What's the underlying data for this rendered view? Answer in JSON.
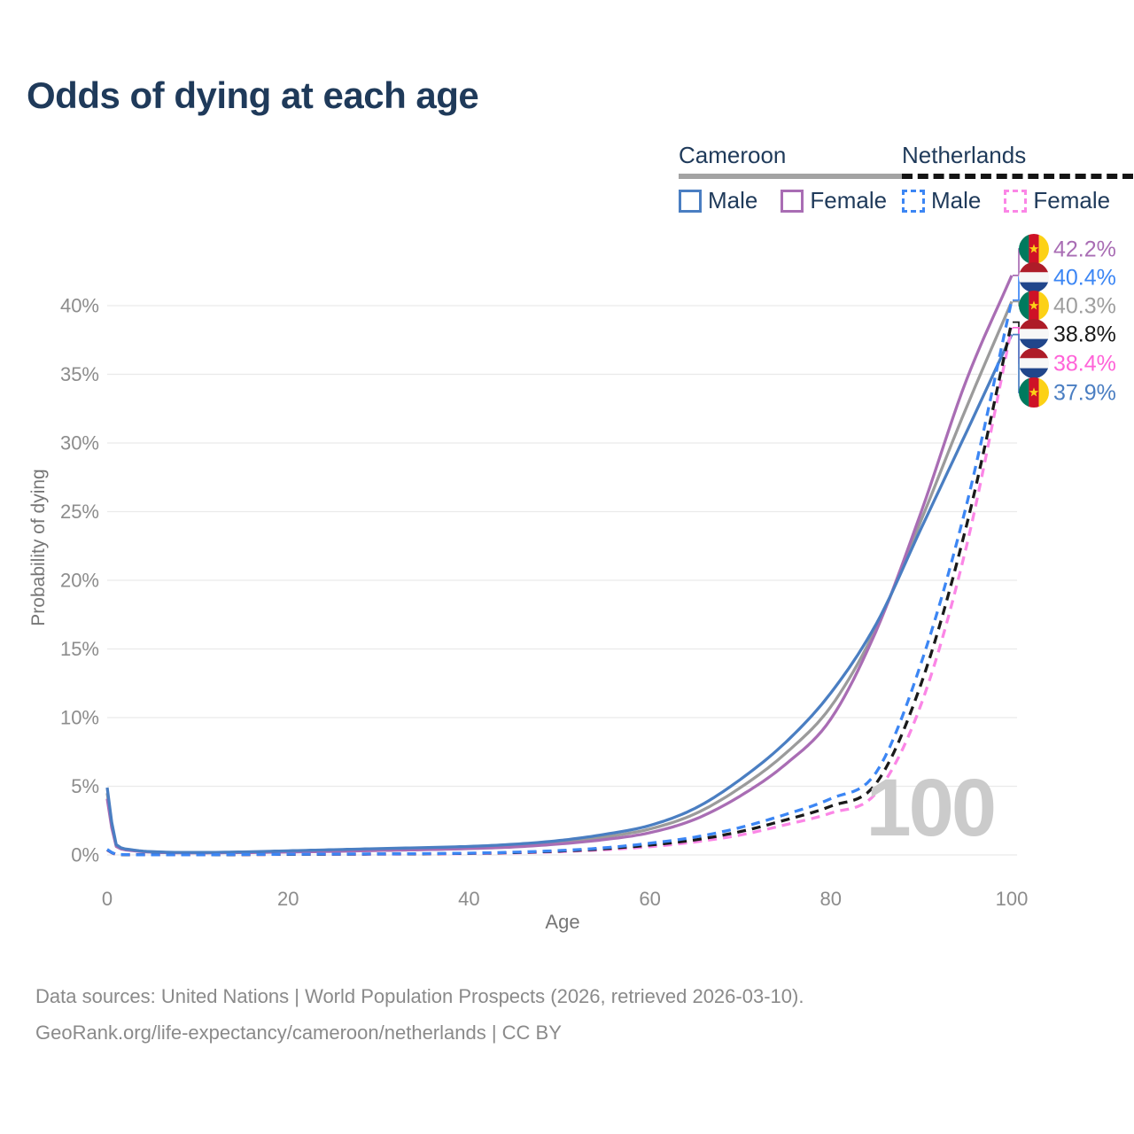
{
  "title": "Odds of dying at each age",
  "watermark_age": "100",
  "legend": {
    "groups": [
      {
        "country": "Cameroon",
        "line_style": "solid",
        "underline_color": "#a3a3a3",
        "items": [
          {
            "label": "Male",
            "color": "#4a7ec2"
          },
          {
            "label": "Female",
            "color": "#a96db4"
          }
        ]
      },
      {
        "country": "Netherlands",
        "line_style": "dashed",
        "underline_color": "#141414",
        "items": [
          {
            "label": "Male",
            "color": "#3c86f4"
          },
          {
            "label": "Female",
            "color": "#fb86e6"
          }
        ]
      }
    ]
  },
  "axes": {
    "xlabel": "Age",
    "ylabel": "Probability of dying"
  },
  "footer": {
    "line1": "Data sources: United Nations | World Population Prospects (2026, retrieved 2026-03-10).",
    "line2": "GeoRank.org/life-expectancy/cameroon/netherlands | CC BY"
  },
  "chart_data": {
    "type": "line",
    "title": "Odds of dying at each age",
    "xlabel": "Age",
    "ylabel": "Probability of dying",
    "xlim": [
      0,
      100
    ],
    "ylim_percent": [
      0,
      43.5
    ],
    "x_ticks": [
      0,
      20,
      40,
      60,
      80,
      100
    ],
    "y_ticks_percent": [
      0,
      5,
      10,
      15,
      20,
      25,
      30,
      35,
      40
    ],
    "grid": "horizontal",
    "legend_position": "top-right",
    "series": [
      {
        "name": "Cameroon Both sexes",
        "country": "Cameroon",
        "sex": "both",
        "color": "#9b9b9b",
        "dashed": false,
        "end_value_percent": 40.3,
        "points": [
          [
            0,
            4.5
          ],
          [
            1,
            0.69
          ],
          [
            3,
            0.33
          ],
          [
            5,
            0.22
          ],
          [
            10,
            0.17
          ],
          [
            15,
            0.2
          ],
          [
            20,
            0.26
          ],
          [
            25,
            0.32
          ],
          [
            30,
            0.39
          ],
          [
            35,
            0.46
          ],
          [
            40,
            0.54
          ],
          [
            45,
            0.68
          ],
          [
            50,
            0.93
          ],
          [
            55,
            1.31
          ],
          [
            60,
            1.89
          ],
          [
            65,
            3.0
          ],
          [
            70,
            4.9
          ],
          [
            75,
            7.4
          ],
          [
            80,
            10.8
          ],
          [
            85,
            16.5
          ],
          [
            90,
            24.4
          ],
          [
            95,
            32.6
          ],
          [
            100,
            40.3
          ]
        ]
      },
      {
        "name": "Cameroon Female",
        "country": "Cameroon",
        "sex": "female",
        "color": "#a96db4",
        "dashed": false,
        "end_value_percent": 42.2,
        "points": [
          [
            0,
            4.1
          ],
          [
            1,
            0.62
          ],
          [
            3,
            0.3
          ],
          [
            5,
            0.2
          ],
          [
            10,
            0.15
          ],
          [
            15,
            0.17
          ],
          [
            20,
            0.21
          ],
          [
            25,
            0.26
          ],
          [
            30,
            0.32
          ],
          [
            35,
            0.38
          ],
          [
            40,
            0.46
          ],
          [
            45,
            0.58
          ],
          [
            50,
            0.8
          ],
          [
            55,
            1.12
          ],
          [
            60,
            1.62
          ],
          [
            65,
            2.6
          ],
          [
            70,
            4.3
          ],
          [
            75,
            6.6
          ],
          [
            80,
            9.9
          ],
          [
            85,
            16.3
          ],
          [
            90,
            25.0
          ],
          [
            95,
            34.6
          ],
          [
            100,
            42.2
          ]
        ]
      },
      {
        "name": "Cameroon Male",
        "country": "Cameroon",
        "sex": "male",
        "color": "#4a7ec2",
        "dashed": false,
        "end_value_percent": 37.9,
        "points": [
          [
            0,
            4.9
          ],
          [
            1,
            0.75
          ],
          [
            3,
            0.35
          ],
          [
            5,
            0.24
          ],
          [
            10,
            0.18
          ],
          [
            15,
            0.22
          ],
          [
            20,
            0.3
          ],
          [
            25,
            0.38
          ],
          [
            30,
            0.46
          ],
          [
            35,
            0.53
          ],
          [
            40,
            0.62
          ],
          [
            45,
            0.78
          ],
          [
            50,
            1.05
          ],
          [
            55,
            1.5
          ],
          [
            60,
            2.15
          ],
          [
            65,
            3.4
          ],
          [
            70,
            5.5
          ],
          [
            75,
            8.2
          ],
          [
            80,
            11.8
          ],
          [
            85,
            16.8
          ],
          [
            90,
            23.8
          ],
          [
            95,
            30.8
          ],
          [
            100,
            37.9
          ]
        ]
      },
      {
        "name": "Netherlands Female",
        "country": "Netherlands",
        "sex": "female",
        "color": "#fb86e6",
        "dashed": true,
        "end_value_percent": 38.4,
        "points": [
          [
            0,
            0.35
          ],
          [
            1,
            0.03
          ],
          [
            5,
            0.009
          ],
          [
            10,
            0.009
          ],
          [
            15,
            0.02
          ],
          [
            20,
            0.035
          ],
          [
            25,
            0.045
          ],
          [
            30,
            0.055
          ],
          [
            35,
            0.07
          ],
          [
            40,
            0.1
          ],
          [
            45,
            0.15
          ],
          [
            50,
            0.24
          ],
          [
            55,
            0.38
          ],
          [
            60,
            0.6
          ],
          [
            65,
            0.95
          ],
          [
            70,
            1.45
          ],
          [
            75,
            2.2
          ],
          [
            80,
            3.05
          ],
          [
            85,
            4.5
          ],
          [
            90,
            11.0
          ],
          [
            95,
            22.5
          ],
          [
            100,
            38.4
          ]
        ]
      },
      {
        "name": "Netherlands Both sexes",
        "country": "Netherlands",
        "sex": "both",
        "color": "#1a1a1a",
        "dashed": true,
        "end_value_percent": 38.8,
        "points": [
          [
            0,
            0.38
          ],
          [
            1,
            0.035
          ],
          [
            5,
            0.01
          ],
          [
            10,
            0.01
          ],
          [
            15,
            0.025
          ],
          [
            20,
            0.045
          ],
          [
            25,
            0.055
          ],
          [
            30,
            0.065
          ],
          [
            35,
            0.085
          ],
          [
            40,
            0.115
          ],
          [
            45,
            0.175
          ],
          [
            50,
            0.28
          ],
          [
            55,
            0.45
          ],
          [
            60,
            0.72
          ],
          [
            65,
            1.1
          ],
          [
            70,
            1.7
          ],
          [
            75,
            2.55
          ],
          [
            80,
            3.55
          ],
          [
            85,
            5.2
          ],
          [
            90,
            12.5
          ],
          [
            95,
            24.0
          ],
          [
            100,
            38.8
          ]
        ]
      },
      {
        "name": "Netherlands Male",
        "country": "Netherlands",
        "sex": "male",
        "color": "#3c86f4",
        "dashed": true,
        "end_value_percent": 40.4,
        "points": [
          [
            0,
            0.4
          ],
          [
            1,
            0.04
          ],
          [
            5,
            0.012
          ],
          [
            10,
            0.012
          ],
          [
            15,
            0.03
          ],
          [
            20,
            0.055
          ],
          [
            25,
            0.065
          ],
          [
            30,
            0.075
          ],
          [
            35,
            0.095
          ],
          [
            40,
            0.13
          ],
          [
            45,
            0.2
          ],
          [
            50,
            0.32
          ],
          [
            55,
            0.52
          ],
          [
            60,
            0.85
          ],
          [
            65,
            1.3
          ],
          [
            70,
            2.0
          ],
          [
            75,
            2.95
          ],
          [
            80,
            4.1
          ],
          [
            85,
            6.0
          ],
          [
            90,
            14.0
          ],
          [
            95,
            25.5
          ],
          [
            100,
            40.4
          ]
        ]
      }
    ],
    "end_labels": [
      {
        "text": "42.2%",
        "series": "Cameroon Female",
        "flag": "cameroon",
        "color": "#a96db4",
        "value": 42.2
      },
      {
        "text": "40.4%",
        "series": "Netherlands Male",
        "flag": "netherlands",
        "color": "#3c86f4",
        "value": 40.4
      },
      {
        "text": "40.3%",
        "series": "Cameroon Both sexes",
        "flag": "cameroon",
        "color": "#9e9e9e",
        "value": 40.3
      },
      {
        "text": "38.8%",
        "series": "Netherlands Both sexes",
        "flag": "netherlands",
        "color": "#1a1a1a",
        "value": 38.8
      },
      {
        "text": "38.4%",
        "series": "Netherlands Female",
        "flag": "netherlands",
        "color": "#ff63d8",
        "value": 38.4
      },
      {
        "text": "37.9%",
        "series": "Cameroon Male",
        "flag": "cameroon",
        "color": "#4a7ec2",
        "value": 37.9
      }
    ],
    "flag_colors": {
      "cameroon": [
        "#007a5e",
        "#ce1126",
        "#fcd116"
      ],
      "netherlands": [
        "#ae1c28",
        "#f7f7f7",
        "#21468b"
      ]
    }
  }
}
